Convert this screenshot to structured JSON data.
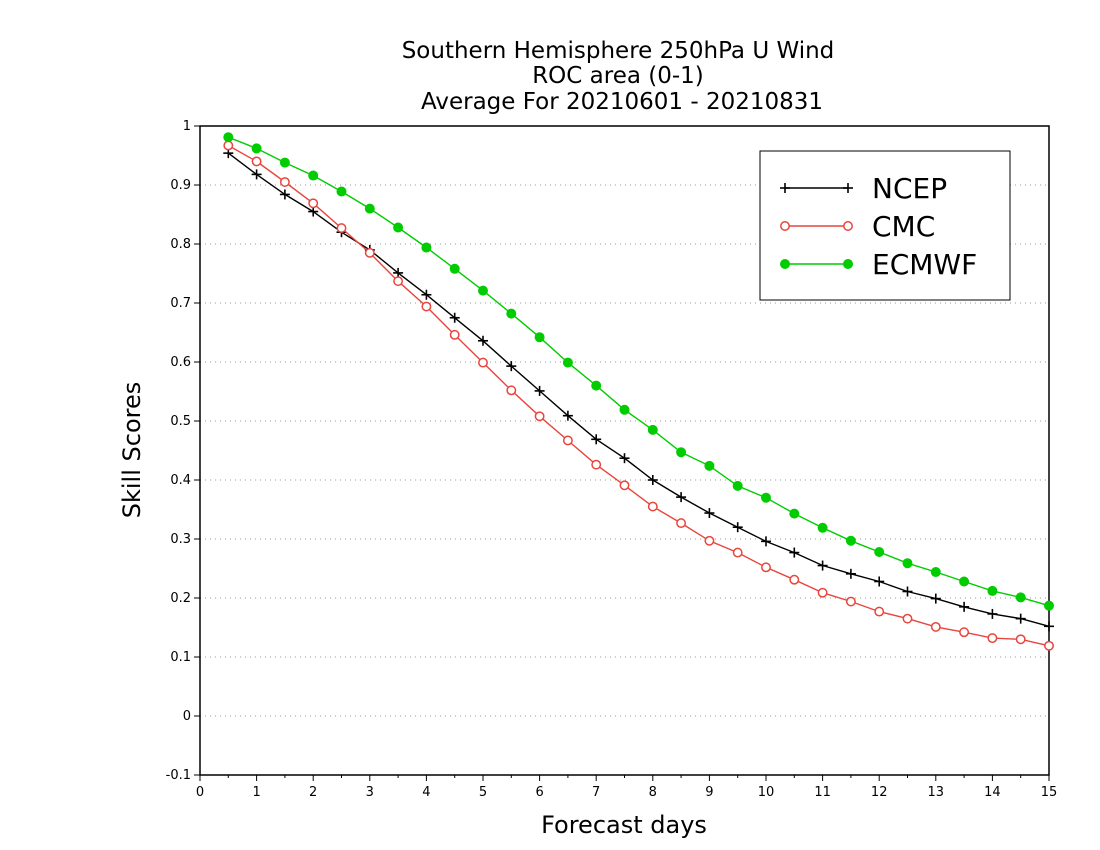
{
  "chart_data": {
    "type": "line",
    "title": [
      "Southern Hemisphere 250hPa U Wind",
      "ROC area (0-1)",
      "Average For 20210601 - 20210831"
    ],
    "xlabel": "Forecast days",
    "ylabel": "Skill Scores",
    "xlim": [
      0,
      15
    ],
    "ylim": [
      -0.1,
      1
    ],
    "x_ticks": [
      "0",
      "1",
      "2",
      "3",
      "4",
      "5",
      "6",
      "7",
      "8",
      "9",
      "10",
      "11",
      "12",
      "13",
      "14",
      "15"
    ],
    "y_ticks": [
      "-0.1",
      "0",
      "0.1",
      "0.2",
      "0.3",
      "0.4",
      "0.5",
      "0.6",
      "0.7",
      "0.8",
      "0.9",
      "1"
    ],
    "grid": "horizontal-dotted",
    "legend_position": "top-right",
    "x": [
      0.5,
      1,
      1.5,
      2,
      2.5,
      3,
      3.5,
      4,
      4.5,
      5,
      5.5,
      6,
      6.5,
      7,
      7.5,
      8,
      8.5,
      9,
      9.5,
      10,
      10.5,
      11,
      11.5,
      12,
      12.5,
      13,
      13.5,
      14,
      14.5,
      15
    ],
    "series": [
      {
        "name": "NCEP",
        "color": "#000000",
        "marker": "plus",
        "values": [
          0.954,
          0.918,
          0.884,
          0.855,
          0.82,
          0.79,
          0.751,
          0.714,
          0.675,
          0.636,
          0.593,
          0.551,
          0.509,
          0.469,
          0.437,
          0.4,
          0.371,
          0.344,
          0.32,
          0.296,
          0.277,
          0.255,
          0.241,
          0.228,
          0.211,
          0.199,
          0.185,
          0.173,
          0.165,
          0.152
        ]
      },
      {
        "name": "CMC",
        "color": "#e8453c",
        "marker": "open-circle",
        "values": [
          0.967,
          0.94,
          0.905,
          0.869,
          0.827,
          0.785,
          0.737,
          0.694,
          0.646,
          0.599,
          0.552,
          0.508,
          0.467,
          0.426,
          0.391,
          0.355,
          0.327,
          0.297,
          0.277,
          0.252,
          0.231,
          0.209,
          0.194,
          0.177,
          0.165,
          0.151,
          0.142,
          0.132,
          0.13,
          0.119
        ]
      },
      {
        "name": "ECMWF",
        "color": "#00cc00",
        "marker": "filled-circle",
        "values": [
          0.981,
          0.962,
          0.938,
          0.916,
          0.889,
          0.86,
          0.828,
          0.794,
          0.758,
          0.721,
          0.682,
          0.642,
          0.599,
          0.56,
          0.519,
          0.485,
          0.447,
          0.424,
          0.39,
          0.37,
          0.343,
          0.319,
          0.297,
          0.278,
          0.259,
          0.244,
          0.228,
          0.212,
          0.201,
          0.187
        ]
      }
    ]
  }
}
